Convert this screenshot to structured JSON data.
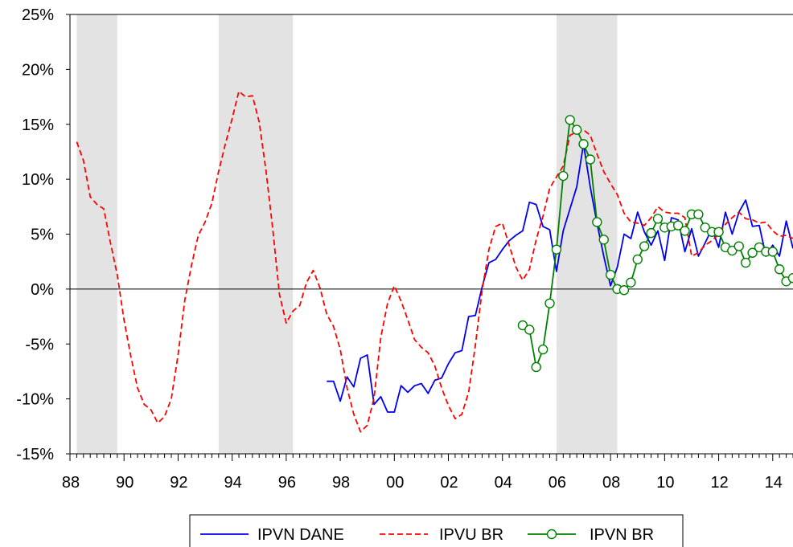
{
  "chart_data": {
    "type": "line",
    "title": "",
    "xlabel": "",
    "ylabel": "",
    "x_range": [
      1988.0,
      2014.75
    ],
    "ylim": [
      -15,
      25
    ],
    "y_ticks": [
      -15,
      -10,
      -5,
      0,
      5,
      10,
      15,
      20,
      25
    ],
    "y_tick_labels": [
      "-15%",
      "-10%",
      "-5%",
      "0%",
      "5%",
      "10%",
      "15%",
      "20%",
      "25%"
    ],
    "x_ticks": [
      1988,
      1990,
      1992,
      1994,
      1996,
      1998,
      2000,
      2002,
      2004,
      2006,
      2008,
      2010,
      2012,
      2014
    ],
    "x_tick_labels": [
      "88",
      "90",
      "92",
      "94",
      "96",
      "98",
      "00",
      "02",
      "04",
      "06",
      "08",
      "10",
      "12",
      "14"
    ],
    "zero_line": true,
    "grid": false,
    "legend_position": "bottom",
    "shaded_periods": [
      {
        "start": 1988.25,
        "end": 1989.75
      },
      {
        "start": 1993.5,
        "end": 1996.25
      },
      {
        "start": 2006.0,
        "end": 2008.25
      }
    ],
    "colors": {
      "shading": "#e3e3e3",
      "zero_line": "#000000",
      "axis": "#000000"
    },
    "series": [
      {
        "name": "IPVN DANE",
        "color": "#0000ee",
        "style": "solid",
        "marker": "none",
        "x": [
          1997.5,
          1997.75,
          1998.0,
          1998.25,
          1998.5,
          1998.75,
          1999.0,
          1999.25,
          1999.5,
          1999.75,
          2000.0,
          2000.25,
          2000.5,
          2000.75,
          2001.0,
          2001.25,
          2001.5,
          2001.75,
          2002.0,
          2002.25,
          2002.5,
          2002.75,
          2003.0,
          2003.25,
          2003.5,
          2003.75,
          2004.0,
          2004.25,
          2004.5,
          2004.75,
          2005.0,
          2005.25,
          2005.5,
          2005.75,
          2006.0,
          2006.25,
          2006.5,
          2006.75,
          2007.0,
          2007.25,
          2007.5,
          2007.75,
          2008.0,
          2008.25,
          2008.5,
          2008.75,
          2009.0,
          2009.25,
          2009.5,
          2009.75,
          2010.0,
          2010.25,
          2010.5,
          2010.75,
          2011.0,
          2011.25,
          2011.5,
          2011.75,
          2012.0,
          2012.25,
          2012.5,
          2012.75,
          2013.0,
          2013.25,
          2013.5,
          2013.75,
          2014.0,
          2014.25,
          2014.5,
          2014.75
        ],
        "y": [
          -8.4,
          -8.4,
          -10.2,
          -8.0,
          -8.9,
          -6.3,
          -6.0,
          -10.5,
          -9.8,
          -11.2,
          -11.2,
          -8.8,
          -9.4,
          -8.8,
          -8.6,
          -9.5,
          -8.3,
          -8.1,
          -6.8,
          -5.8,
          -5.6,
          -2.5,
          -2.4,
          0.2,
          2.4,
          2.7,
          3.6,
          4.4,
          4.9,
          5.3,
          7.9,
          7.7,
          5.7,
          5.4,
          1.6,
          5.3,
          7.3,
          9.3,
          13.2,
          9.3,
          6.0,
          3.0,
          0.3,
          2.0,
          5.0,
          4.6,
          7.0,
          5.2,
          4.0,
          5.3,
          2.6,
          6.5,
          6.3,
          3.4,
          5.5,
          3.0,
          4.2,
          5.5,
          3.8,
          7.0,
          5.0,
          7.0,
          8.1,
          5.7,
          5.8,
          3.0,
          4.0,
          3.0,
          6.2,
          3.7
        ]
      },
      {
        "name": "IPVU BR",
        "color": "#ff0000",
        "style": "dashed",
        "marker": "none",
        "x": [
          1988.25,
          1988.5,
          1988.75,
          1989.0,
          1989.25,
          1989.5,
          1989.75,
          1990.0,
          1990.25,
          1990.5,
          1990.75,
          1991.0,
          1991.25,
          1991.5,
          1991.75,
          1992.0,
          1992.25,
          1992.5,
          1992.75,
          1993.0,
          1993.25,
          1993.5,
          1993.75,
          1994.0,
          1994.25,
          1994.5,
          1994.75,
          1995.0,
          1995.25,
          1995.5,
          1995.75,
          1996.0,
          1996.25,
          1996.5,
          1996.75,
          1997.0,
          1997.25,
          1997.5,
          1997.75,
          1998.0,
          1998.25,
          1998.5,
          1998.75,
          1999.0,
          1999.25,
          1999.5,
          1999.75,
          2000.0,
          2000.25,
          2000.5,
          2000.75,
          2001.0,
          2001.25,
          2001.5,
          2001.75,
          2002.0,
          2002.25,
          2002.5,
          2002.75,
          2003.0,
          2003.25,
          2003.5,
          2003.75,
          2004.0,
          2004.25,
          2004.5,
          2004.75,
          2005.0,
          2005.25,
          2005.5,
          2005.75,
          2006.0,
          2006.25,
          2006.5,
          2006.75,
          2007.0,
          2007.25,
          2007.5,
          2007.75,
          2008.0,
          2008.25,
          2008.5,
          2008.75,
          2009.0,
          2009.25,
          2009.5,
          2009.75,
          2010.0,
          2010.25,
          2010.5,
          2010.75,
          2011.0,
          2011.25,
          2011.5,
          2011.75,
          2012.0,
          2012.25,
          2012.5,
          2012.75,
          2013.0,
          2013.25,
          2013.5,
          2013.75,
          2014.0,
          2014.25,
          2014.5,
          2014.75
        ],
        "y": [
          13.4,
          11.7,
          8.4,
          7.7,
          7.3,
          4.2,
          1.3,
          -2.8,
          -6.1,
          -9.0,
          -10.5,
          -11.0,
          -12.2,
          -11.6,
          -10.0,
          -6.0,
          -1.0,
          2.2,
          4.9,
          6.1,
          7.8,
          10.7,
          13.2,
          15.5,
          18.0,
          17.5,
          17.6,
          15.2,
          10.8,
          5.5,
          -0.5,
          -3.1,
          -2.0,
          -1.5,
          0.6,
          1.7,
          0.1,
          -2.3,
          -3.4,
          -5.5,
          -9.0,
          -11.4,
          -13.0,
          -12.4,
          -9.9,
          -4.4,
          -1.3,
          0.3,
          -1.1,
          -2.8,
          -4.6,
          -5.3,
          -5.8,
          -7.0,
          -9.0,
          -10.6,
          -11.8,
          -11.4,
          -9.4,
          -5.1,
          -0.1,
          3.6,
          5.7,
          6.0,
          4.0,
          2.0,
          0.8,
          1.8,
          4.5,
          6.6,
          9.2,
          10.2,
          11.2,
          14.0,
          14.3,
          14.5,
          14.0,
          12.3,
          10.7,
          9.6,
          8.6,
          6.9,
          6.1,
          6.0,
          5.8,
          6.5,
          7.5,
          7.0,
          6.9,
          6.9,
          6.5,
          3.0,
          3.3,
          4.0,
          4.4,
          5.0,
          5.9,
          6.5,
          7.0,
          6.4,
          6.3,
          6.0,
          6.1,
          5.3,
          4.8,
          4.9,
          4.6
        ]
      },
      {
        "name": "IPVN BR",
        "color": "#008000",
        "style": "solid",
        "marker": "circle",
        "x": [
          2004.75,
          2005.0,
          2005.25,
          2005.5,
          2005.75,
          2006.0,
          2006.25,
          2006.5,
          2006.75,
          2007.0,
          2007.25,
          2007.5,
          2007.75,
          2008.0,
          2008.25,
          2008.5,
          2008.75,
          2009.0,
          2009.25,
          2009.5,
          2009.75,
          2010.0,
          2010.25,
          2010.5,
          2010.75,
          2011.0,
          2011.25,
          2011.5,
          2011.75,
          2012.0,
          2012.25,
          2012.5,
          2012.75,
          2013.0,
          2013.25,
          2013.5,
          2013.75,
          2014.0,
          2014.25,
          2014.5,
          2014.75
        ],
        "y": [
          -3.3,
          -3.7,
          -7.1,
          -5.5,
          -1.3,
          3.6,
          10.3,
          15.4,
          14.5,
          13.2,
          11.8,
          6.1,
          4.5,
          1.3,
          0.0,
          -0.1,
          0.6,
          2.7,
          3.9,
          5.1,
          6.4,
          5.6,
          5.7,
          5.8,
          5.3,
          6.8,
          6.8,
          5.6,
          5.2,
          5.2,
          3.8,
          3.5,
          3.9,
          2.4,
          3.3,
          3.8,
          3.4,
          3.4,
          1.8,
          0.7,
          1.0
        ]
      }
    ]
  }
}
